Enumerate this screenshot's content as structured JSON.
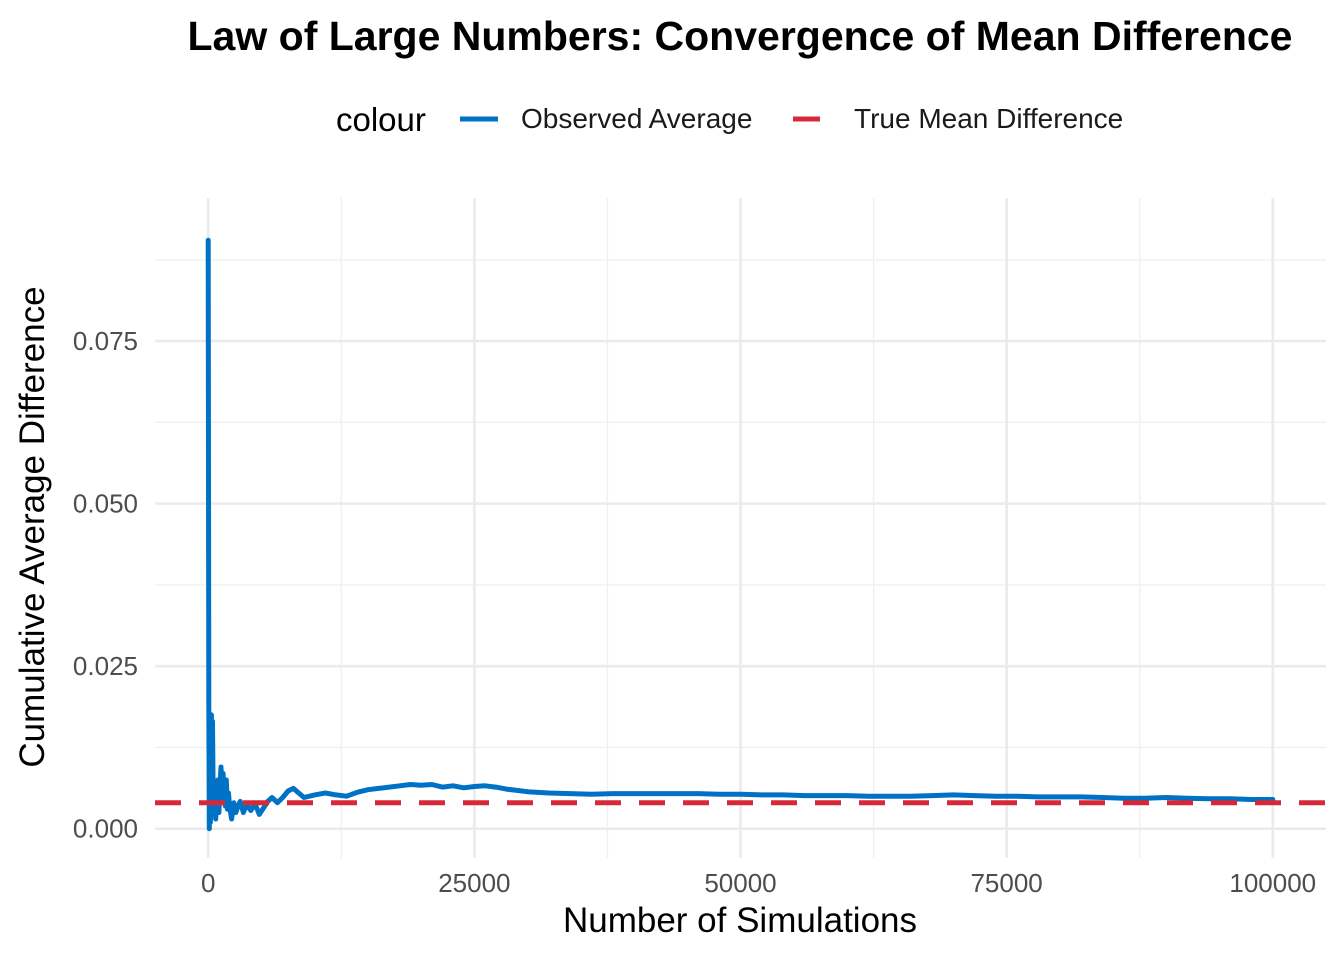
{
  "chart_data": {
    "type": "line",
    "title": "Law of Large Numbers: Convergence of Mean Difference",
    "xlabel": "Number of Simulations",
    "ylabel": "Cumulative Average Difference",
    "xlim": [
      -5000,
      105000
    ],
    "ylim": [
      -0.0045,
      0.097
    ],
    "x_ticks": [
      0,
      25000,
      50000,
      75000,
      100000
    ],
    "x_tick_labels": [
      "0",
      "25000",
      "50000",
      "75000",
      "100000"
    ],
    "y_ticks": [
      0.0,
      0.025,
      0.05,
      0.075
    ],
    "y_tick_labels": [
      "0.000",
      "0.025",
      "0.050",
      "0.075"
    ],
    "grid": true,
    "legend": {
      "title": "colour",
      "position": "top",
      "entries": [
        "Observed Average",
        "True Mean Difference"
      ]
    },
    "series": [
      {
        "name": "Observed Average",
        "color": "#0072C6",
        "style": "solid",
        "x": [
          1,
          50,
          100,
          150,
          200,
          250,
          300,
          350,
          400,
          450,
          500,
          600,
          700,
          800,
          900,
          1000,
          1100,
          1200,
          1300,
          1400,
          1500,
          1600,
          1700,
          1800,
          1900,
          2000,
          2200,
          2400,
          2600,
          2800,
          3000,
          3300,
          3600,
          4000,
          4400,
          4800,
          5200,
          5600,
          6000,
          6500,
          7000,
          7500,
          8000,
          8500,
          9000,
          10000,
          11000,
          12000,
          13000,
          14000,
          15000,
          16000,
          17000,
          18000,
          19000,
          20000,
          21000,
          22000,
          23000,
          24000,
          25000,
          26000,
          27000,
          28000,
          29000,
          30000,
          32000,
          34000,
          36000,
          38000,
          40000,
          42000,
          44000,
          46000,
          48000,
          50000,
          52000,
          54000,
          56000,
          58000,
          60000,
          62000,
          64000,
          66000,
          68000,
          70000,
          72000,
          74000,
          76000,
          78000,
          80000,
          82000,
          84000,
          86000,
          88000,
          90000,
          92000,
          94000,
          96000,
          98000,
          100000
        ],
        "y": [
          0.0905,
          0.02,
          0.0,
          0.013,
          0.001,
          0.0045,
          0.0175,
          0.003,
          0.0165,
          0.008,
          0.0025,
          0.005,
          0.0015,
          0.0045,
          0.0075,
          0.0025,
          0.006,
          0.0095,
          0.0055,
          0.0085,
          0.005,
          0.0035,
          0.0075,
          0.003,
          0.0055,
          0.0035,
          0.0015,
          0.004,
          0.0025,
          0.0035,
          0.0042,
          0.0025,
          0.0038,
          0.0028,
          0.0038,
          0.0022,
          0.0032,
          0.0042,
          0.0048,
          0.004,
          0.0048,
          0.0058,
          0.0062,
          0.0055,
          0.0048,
          0.0052,
          0.0055,
          0.0052,
          0.005,
          0.0056,
          0.006,
          0.0062,
          0.0064,
          0.0066,
          0.0068,
          0.0067,
          0.0068,
          0.0064,
          0.0066,
          0.0063,
          0.0065,
          0.0066,
          0.0064,
          0.0061,
          0.0059,
          0.0057,
          0.0055,
          0.0054,
          0.0053,
          0.0054,
          0.0054,
          0.0054,
          0.0054,
          0.0054,
          0.0053,
          0.0053,
          0.0052,
          0.0052,
          0.0051,
          0.0051,
          0.0051,
          0.005,
          0.005,
          0.005,
          0.0051,
          0.0052,
          0.0051,
          0.005,
          0.005,
          0.0049,
          0.0049,
          0.0049,
          0.0048,
          0.0047,
          0.0047,
          0.0048,
          0.0047,
          0.0046,
          0.0046,
          0.0045,
          0.0045
        ]
      },
      {
        "name": "True Mean Difference",
        "color": "#D62839",
        "style": "dashed",
        "value": 0.004
      }
    ]
  }
}
